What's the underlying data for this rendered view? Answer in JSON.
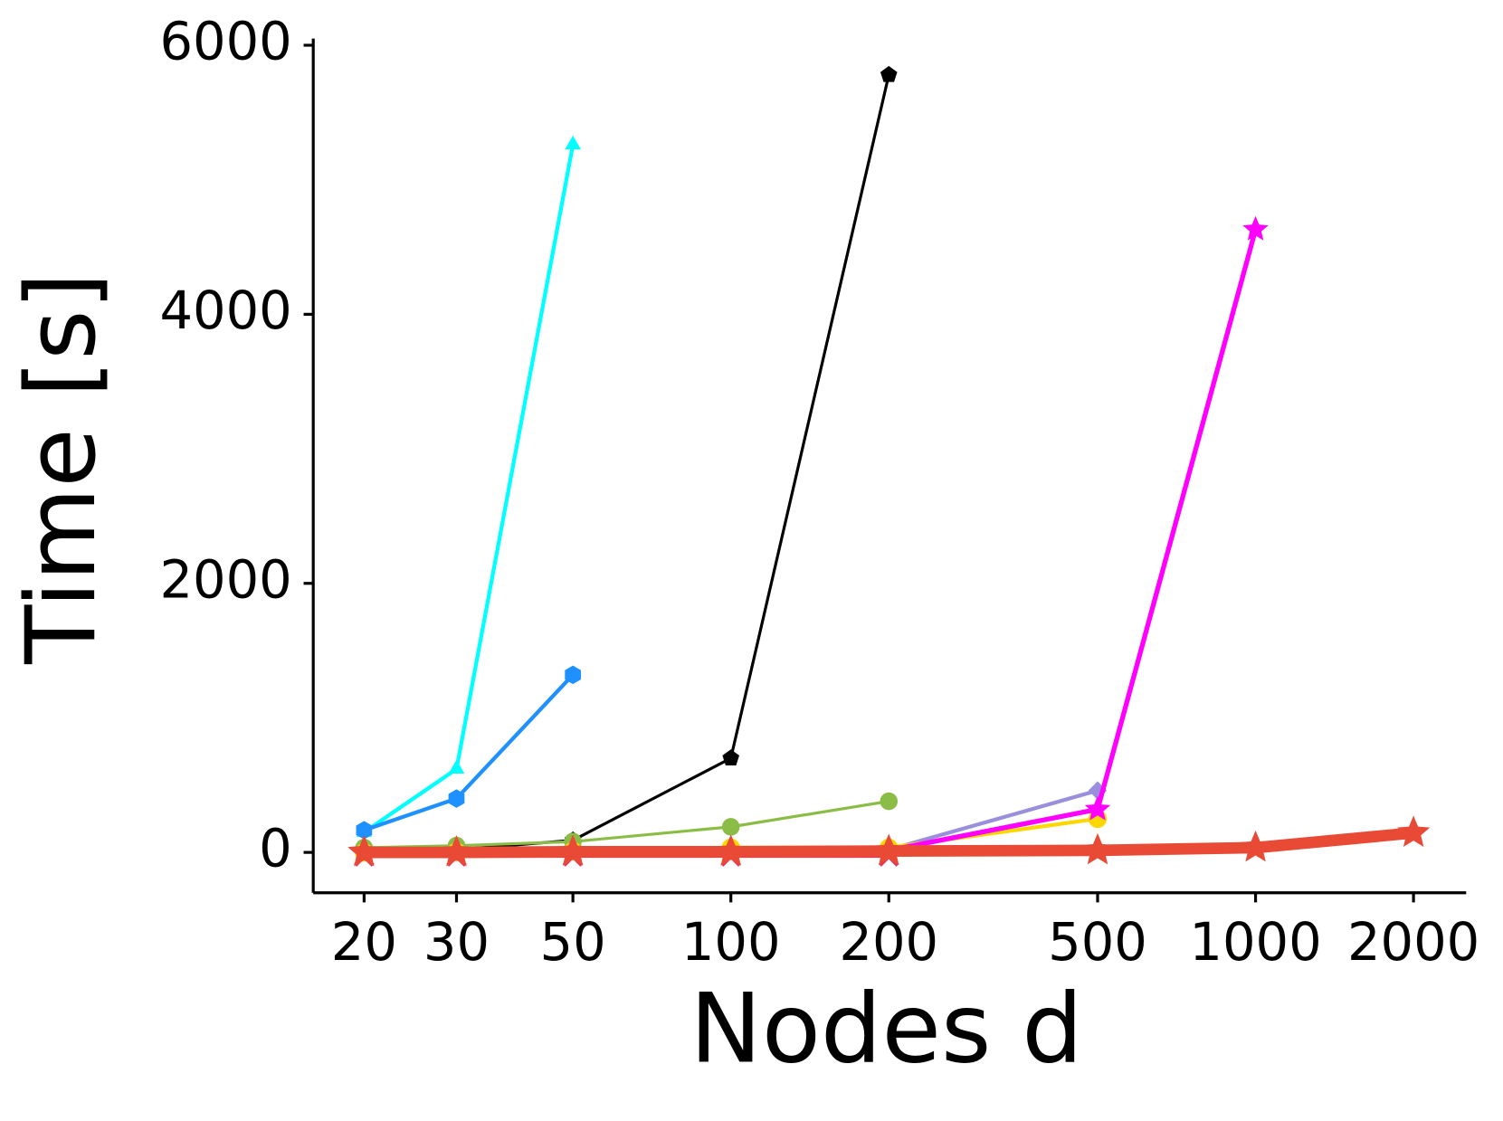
{
  "chart_data": {
    "type": "line",
    "xlabel": "Nodes d",
    "ylabel": "Time [s]",
    "xscale": "log",
    "xlim": [
      16,
      2520
    ],
    "ylim": [
      -300,
      6050
    ],
    "xticks": [
      20,
      30,
      50,
      100,
      200,
      500,
      1000,
      2000
    ],
    "yticks": [
      0,
      2000,
      4000,
      6000
    ],
    "series": [
      {
        "color": "#00ffff",
        "marker": "triangle",
        "linewidth": 4,
        "x": [
          20,
          30,
          50
        ],
        "values": [
          150,
          620,
          5260
        ]
      },
      {
        "color": "#1e90ff",
        "marker": "hexagon",
        "linewidth": 4,
        "x": [
          20,
          30,
          50
        ],
        "values": [
          165,
          400,
          1320
        ]
      },
      {
        "color": "#000000",
        "marker": "pentagon",
        "linewidth": 3,
        "x": [
          20,
          30,
          50,
          100,
          200
        ],
        "values": [
          0,
          20,
          90,
          700,
          5780
        ]
      },
      {
        "color": "#8bbd46",
        "marker": "circle",
        "linewidth": 3,
        "x": [
          20,
          30,
          50,
          100,
          200
        ],
        "values": [
          35,
          50,
          80,
          190,
          380
        ]
      },
      {
        "color": "#9a8fdc",
        "marker": "diamond",
        "linewidth": 4,
        "x": [
          20,
          30,
          50,
          100,
          200,
          500
        ],
        "values": [
          0,
          0,
          5,
          10,
          20,
          460
        ]
      },
      {
        "color": "#ffd700",
        "marker": "circle",
        "linewidth": 4,
        "x": [
          20,
          30,
          50,
          100,
          200,
          500
        ],
        "values": [
          0,
          5,
          10,
          35,
          35,
          250
        ]
      },
      {
        "color": "#ff00ff",
        "marker": "star",
        "linewidth": 5,
        "x": [
          20,
          30,
          50,
          100,
          200,
          500,
          1000
        ],
        "values": [
          10,
          10,
          10,
          10,
          15,
          320,
          4630
        ]
      },
      {
        "color": "#e8335a",
        "marker": "cross",
        "linewidth": 3,
        "x": [
          20,
          30,
          50,
          100,
          200
        ],
        "values": [
          -30,
          -30,
          -30,
          -30,
          -30
        ]
      },
      {
        "color": "#e84a35",
        "marker": "star",
        "linewidth": 12,
        "x": [
          20,
          30,
          50,
          100,
          200,
          500,
          1000,
          2000
        ],
        "values": [
          0,
          0,
          5,
          5,
          10,
          15,
          35,
          145
        ]
      }
    ]
  }
}
